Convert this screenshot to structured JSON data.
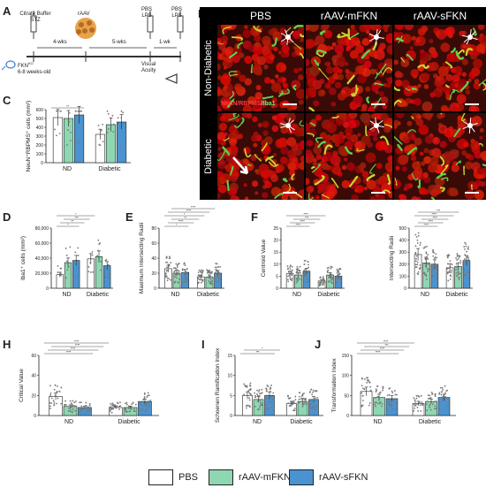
{
  "panels": {
    "A": "A",
    "B": "B",
    "C": "C",
    "D": "D",
    "E": "E",
    "F": "F",
    "G": "G",
    "H": "H",
    "I": "I",
    "J": "J"
  },
  "timeline": {
    "citrate": "Citrate Buffer",
    "stz": "STZ",
    "rAAV": "rAAV",
    "pbs_lps_1": "PBS\nLPS",
    "pbs_lps_2": "PBS\nLPS",
    "wks4": "4-wks",
    "wks5": "5-wks",
    "wk1": "1-wk",
    "mouse": "FKN",
    "mouse_sup": "KO",
    "age": "6-8 weeks-old",
    "visual": "Visual\nAcuity"
  },
  "micro": {
    "columns": [
      "PBS",
      "rAAV-mFKN",
      "rAAV-sFKN"
    ],
    "rows": [
      "Non-Diabetic",
      "Diabetic"
    ],
    "stain_neun": "NeuN",
    "stain_rbpms": "RBPMS",
    "stain_iba1": "Iba1"
  },
  "colors": {
    "pbs": "#ffffff",
    "mfkn": "#8fd6b2",
    "sfkn": "#4a93d0",
    "dots": "#777777"
  },
  "legend": {
    "pbs": "PBS",
    "mfkn": "rAAV-mFKN",
    "sfkn": "rAAV-sFKN"
  },
  "chart_data": [
    {
      "id": "C",
      "type": "bar",
      "ylabel": "NeuN⁺RBPMS⁺ cells (mm²)",
      "groups": [
        "ND",
        "Diabetic"
      ],
      "ylim": [
        0,
        600
      ],
      "yticks": [
        0,
        100,
        200,
        300,
        400,
        500,
        600
      ],
      "series": [
        {
          "name": "PBS",
          "values": [
            510,
            320
          ]
        },
        {
          "name": "rAAV-mFKN",
          "values": [
            500,
            430
          ]
        },
        {
          "name": "rAAV-sFKN",
          "values": [
            540,
            460
          ]
        }
      ],
      "sig": [
        "**"
      ]
    },
    {
      "id": "D",
      "type": "bar",
      "ylabel": "Iba1⁺ cells (mm²)",
      "groups": [
        "ND",
        "Diabetic"
      ],
      "ylim": [
        0,
        80000
      ],
      "yticks": [
        0,
        20000,
        40000,
        60000,
        80000
      ],
      "ytick_labels": [
        "0",
        "20,000",
        "40,000",
        "60,000",
        "80,000"
      ],
      "series": [
        {
          "name": "PBS",
          "values": [
            18000,
            39000
          ]
        },
        {
          "name": "rAAV-mFKN",
          "values": [
            34000,
            42000
          ]
        },
        {
          "name": "rAAV-sFKN",
          "values": [
            37000,
            30000
          ]
        }
      ],
      "sig": [
        "*",
        "**",
        "***",
        "*"
      ]
    },
    {
      "id": "E",
      "type": "bar",
      "ylabel": "Maximum Intersecting Radii",
      "groups": [
        "ND",
        "Diabetic"
      ],
      "ylim": [
        0,
        80
      ],
      "yticks": [
        0,
        20,
        40,
        60,
        80
      ],
      "series": [
        {
          "name": "PBS",
          "values": [
            26,
            15
          ]
        },
        {
          "name": "rAAV-mFKN",
          "values": [
            20,
            15
          ]
        },
        {
          "name": "rAAV-sFKN",
          "values": [
            21,
            20
          ]
        }
      ],
      "sig": [
        "*",
        "****",
        "**",
        "*",
        "****",
        "****"
      ]
    },
    {
      "id": "F",
      "type": "bar",
      "ylabel": "Centroid Value",
      "groups": [
        "ND",
        "Diabetic"
      ],
      "ylim": [
        0,
        25
      ],
      "yticks": [
        0,
        5,
        10,
        15,
        20,
        25
      ],
      "series": [
        {
          "name": "PBS",
          "values": [
            6,
            3
          ]
        },
        {
          "name": "rAAV-mFKN",
          "values": [
            5.5,
            5.5
          ]
        },
        {
          "name": "rAAV-sFKN",
          "values": [
            7,
            5
          ]
        }
      ],
      "sig": [
        "****",
        "****",
        "***",
        "****"
      ]
    },
    {
      "id": "G",
      "type": "bar",
      "ylabel": "Intersecting Radii",
      "groups": [
        "ND",
        "Diabetic"
      ],
      "ylim": [
        0,
        500
      ],
      "yticks": [
        0,
        100,
        200,
        300,
        400,
        500
      ],
      "series": [
        {
          "name": "PBS",
          "values": [
            280,
            170
          ]
        },
        {
          "name": "rAAV-mFKN",
          "values": [
            210,
            180
          ]
        },
        {
          "name": "rAAV-sFKN",
          "values": [
            200,
            230
          ]
        }
      ],
      "sig": [
        "****",
        "****",
        "****",
        "****",
        "***"
      ]
    },
    {
      "id": "H",
      "type": "bar",
      "ylabel": "Critical Value",
      "groups": [
        "ND",
        "Diabetic"
      ],
      "ylim": [
        0,
        60
      ],
      "yticks": [
        0,
        20,
        40,
        60
      ],
      "series": [
        {
          "name": "PBS",
          "values": [
            19,
            8
          ]
        },
        {
          "name": "rAAV-mFKN",
          "values": [
            9,
            8
          ]
        },
        {
          "name": "rAAV-sFKN",
          "values": [
            8,
            14
          ]
        }
      ],
      "sig": [
        "****",
        "****",
        "****",
        "****"
      ]
    },
    {
      "id": "I",
      "type": "bar",
      "ylabel": "Schoenen Ramification Index",
      "groups": [
        "ND",
        "Diabetic"
      ],
      "ylim": [
        0,
        15
      ],
      "yticks": [
        0,
        5,
        10,
        15
      ],
      "series": [
        {
          "name": "PBS",
          "values": [
            5,
            3
          ]
        },
        {
          "name": "rAAV-mFKN",
          "values": [
            4,
            3.5
          ]
        },
        {
          "name": "rAAV-sFKN",
          "values": [
            5,
            4
          ]
        }
      ],
      "sig": [
        "***",
        "*"
      ]
    },
    {
      "id": "J",
      "type": "bar",
      "ylabel": "Transformation Index",
      "groups": [
        "ND",
        "Diabetic"
      ],
      "ylim": [
        0,
        150
      ],
      "yticks": [
        0,
        50,
        100,
        150
      ],
      "series": [
        {
          "name": "PBS",
          "values": [
            60,
            30
          ]
        },
        {
          "name": "rAAV-mFKN",
          "values": [
            45,
            35
          ]
        },
        {
          "name": "rAAV-sFKN",
          "values": [
            42,
            45
          ]
        }
      ],
      "sig": [
        "****",
        "****",
        "***",
        "****"
      ]
    }
  ]
}
